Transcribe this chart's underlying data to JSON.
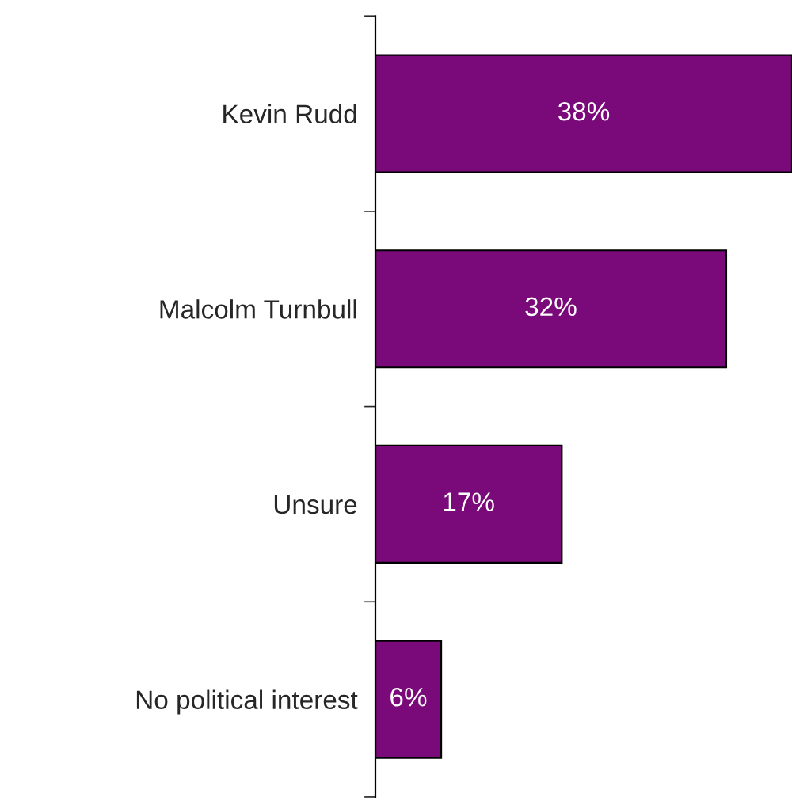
{
  "chart_data": {
    "type": "bar",
    "orientation": "horizontal",
    "categories": [
      "Kevin Rudd",
      "Malcolm Turnbull",
      "Unsure",
      "No political interest"
    ],
    "values": [
      38,
      32,
      17,
      6
    ],
    "value_labels": [
      "38%",
      "32%",
      "17%",
      "6%"
    ],
    "color": "#7a0a7a",
    "grid": false,
    "legend": false
  }
}
